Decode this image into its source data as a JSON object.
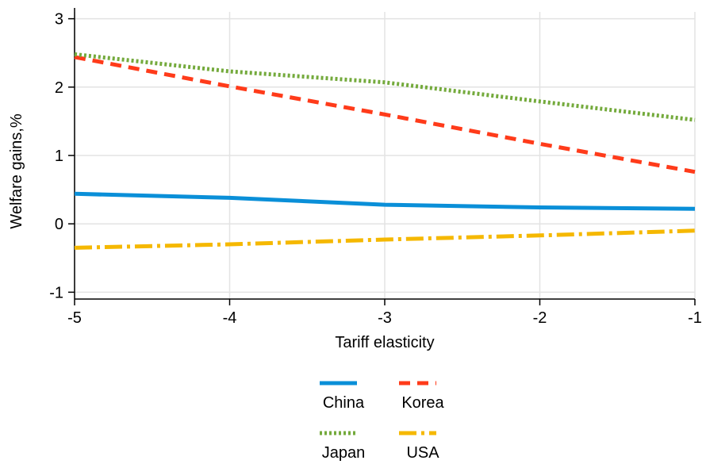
{
  "chart_data": {
    "type": "line",
    "title": "",
    "xlabel": "Tariff elasticity",
    "ylabel": "Welfare gains,%",
    "xlim": [
      -5,
      -1
    ],
    "ylim": [
      -1.1,
      3.1
    ],
    "xticks": [
      -5,
      -4,
      -3,
      -2,
      -1
    ],
    "yticks": [
      -1,
      0,
      1,
      2,
      3
    ],
    "xtick_labels": [
      "-5",
      "-4",
      "-3",
      "-2",
      "-1"
    ],
    "ytick_labels": [
      "-1",
      "0",
      "1",
      "2",
      "3"
    ],
    "grid": true,
    "legend_position": "bottom",
    "x": [
      -5,
      -4,
      -3,
      -2,
      -1
    ],
    "series": [
      {
        "name": "China",
        "color": "#0a8fd8",
        "dash": "solid",
        "values": [
          0.44,
          0.38,
          0.28,
          0.24,
          0.22
        ]
      },
      {
        "name": "Korea",
        "color": "#ff3b1a",
        "dash": "dashed",
        "values": [
          2.44,
          2.01,
          1.6,
          1.17,
          0.76
        ]
      },
      {
        "name": "Japan",
        "color": "#74aa3c",
        "dash": "dotted",
        "values": [
          2.48,
          2.23,
          2.07,
          1.79,
          1.52
        ]
      },
      {
        "name": "USA",
        "color": "#f5b800",
        "dash": "dashdot",
        "values": [
          -0.35,
          -0.3,
          -0.23,
          -0.17,
          -0.1
        ]
      }
    ]
  }
}
